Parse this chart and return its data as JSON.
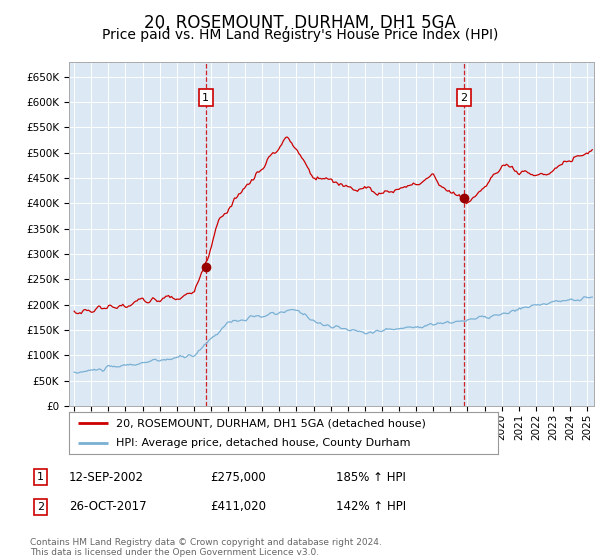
{
  "title": "20, ROSEMOUNT, DURHAM, DH1 5GA",
  "subtitle": "Price paid vs. HM Land Registry's House Price Index (HPI)",
  "title_fontsize": 12,
  "subtitle_fontsize": 10,
  "plot_bg_color": "#dce9f5",
  "red_line_color": "#cc0000",
  "blue_line_color": "#7ab0d4",
  "red_dot_color": "#990000",
  "vline_color": "#cc0000",
  "grid_color": "#ffffff",
  "annotation_box_color": "#cc0000",
  "ylim": [
    0,
    680000
  ],
  "yticks": [
    0,
    50000,
    100000,
    150000,
    200000,
    250000,
    300000,
    350000,
    400000,
    450000,
    500000,
    550000,
    600000,
    650000
  ],
  "xlim_start": 1994.7,
  "xlim_end": 2025.4,
  "sale1_x": 2002.7,
  "sale1_y": 275000,
  "sale2_x": 2017.8,
  "sale2_y": 411020,
  "legend_entry1": "20, ROSEMOUNT, DURHAM, DH1 5GA (detached house)",
  "legend_entry2": "HPI: Average price, detached house, County Durham",
  "table_row1_num": "1",
  "table_row1_date": "12-SEP-2002",
  "table_row1_price": "£275,000",
  "table_row1_hpi": "185% ↑ HPI",
  "table_row2_num": "2",
  "table_row2_date": "26-OCT-2017",
  "table_row2_price": "£411,020",
  "table_row2_hpi": "142% ↑ HPI",
  "footnote": "Contains HM Land Registry data © Crown copyright and database right 2024.\nThis data is licensed under the Open Government Licence v3.0."
}
